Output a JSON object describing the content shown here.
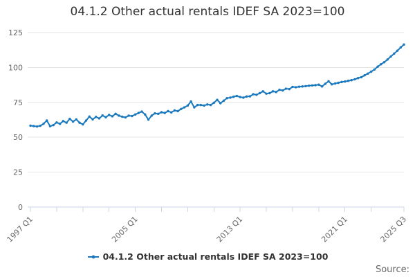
{
  "title": "04.1.2 Other actual rentals IDEF SA 2023=100",
  "legend": {
    "label": "04.1.2 Other actual rentals IDEF SA 2023=100"
  },
  "source_label": "Source:",
  "colors": {
    "line": "#1978be",
    "grid": "#e6e6e6",
    "axis": "#ccd6eb",
    "tick_label": "#666666",
    "title_text": "#333333",
    "legend_text": "#333333",
    "source_text": "#666666"
  },
  "chart_data": {
    "type": "line",
    "title": "04.1.2 Other actual rentals IDEF SA 2023=100",
    "xlabel": "",
    "ylabel": "",
    "ylim": [
      0,
      125
    ],
    "y_ticks": [
      0,
      25,
      50,
      75,
      100,
      125
    ],
    "grid": "horizontal",
    "legend_position": "bottom-center",
    "x_frequency": "quarterly",
    "x_start": "1997 Q1",
    "x_end": "2025 Q3",
    "x_tick_interval_quarters": 8,
    "x_labeled_ticks": [
      {
        "index": 0,
        "label": "1997 Q1"
      },
      {
        "index": 32,
        "label": "2005 Q1"
      },
      {
        "index": 64,
        "label": "2013 Q1"
      },
      {
        "index": 96,
        "label": "2021 Q1"
      },
      {
        "index": 114,
        "label": "2025 Q3"
      }
    ],
    "series": [
      {
        "name": "04.1.2 Other actual rentals IDEF SA 2023=100",
        "color": "#1978be",
        "marker": "circle",
        "periods": [
          "1997 Q1",
          "1997 Q2",
          "1997 Q3",
          "1997 Q4",
          "1998 Q1",
          "1998 Q2",
          "1998 Q3",
          "1998 Q4",
          "1999 Q1",
          "1999 Q2",
          "1999 Q3",
          "1999 Q4",
          "2000 Q1",
          "2000 Q2",
          "2000 Q3",
          "2000 Q4",
          "2001 Q1",
          "2001 Q2",
          "2001 Q3",
          "2001 Q4",
          "2002 Q1",
          "2002 Q2",
          "2002 Q3",
          "2002 Q4",
          "2003 Q1",
          "2003 Q2",
          "2003 Q3",
          "2003 Q4",
          "2004 Q1",
          "2004 Q2",
          "2004 Q3",
          "2004 Q4",
          "2005 Q1",
          "2005 Q2",
          "2005 Q3",
          "2005 Q4",
          "2006 Q1",
          "2006 Q2",
          "2006 Q3",
          "2006 Q4",
          "2007 Q1",
          "2007 Q2",
          "2007 Q3",
          "2007 Q4",
          "2008 Q1",
          "2008 Q2",
          "2008 Q3",
          "2008 Q4",
          "2009 Q1",
          "2009 Q2",
          "2009 Q3",
          "2009 Q4",
          "2010 Q1",
          "2010 Q2",
          "2010 Q3",
          "2010 Q4",
          "2011 Q1",
          "2011 Q2",
          "2011 Q3",
          "2011 Q4",
          "2012 Q1",
          "2012 Q2",
          "2012 Q3",
          "2012 Q4",
          "2013 Q1",
          "2013 Q2",
          "2013 Q3",
          "2013 Q4",
          "2014 Q1",
          "2014 Q2",
          "2014 Q3",
          "2014 Q4",
          "2015 Q1",
          "2015 Q2",
          "2015 Q3",
          "2015 Q4",
          "2016 Q1",
          "2016 Q2",
          "2016 Q3",
          "2016 Q4",
          "2017 Q1",
          "2017 Q2",
          "2017 Q3",
          "2017 Q4",
          "2018 Q1",
          "2018 Q2",
          "2018 Q3",
          "2018 Q4",
          "2019 Q1",
          "2019 Q2",
          "2019 Q3",
          "2019 Q4",
          "2020 Q1",
          "2020 Q2",
          "2020 Q3",
          "2020 Q4",
          "2021 Q1",
          "2021 Q2",
          "2021 Q3",
          "2021 Q4",
          "2022 Q1",
          "2022 Q2",
          "2022 Q3",
          "2022 Q4",
          "2023 Q1",
          "2023 Q2",
          "2023 Q3",
          "2023 Q4",
          "2024 Q1",
          "2024 Q2",
          "2024 Q3",
          "2024 Q4",
          "2025 Q1",
          "2025 Q2",
          "2025 Q3"
        ],
        "values": [
          58.3,
          58.0,
          57.7,
          58.2,
          59.6,
          62.0,
          57.9,
          58.7,
          60.6,
          59.6,
          61.6,
          60.4,
          63.2,
          61.2,
          62.8,
          60.4,
          59.2,
          62.0,
          64.8,
          62.8,
          64.6,
          63.5,
          65.6,
          64.3,
          66.0,
          65.0,
          66.8,
          65.5,
          64.7,
          64.2,
          65.5,
          65.2,
          66.3,
          67.4,
          68.4,
          66.3,
          62.6,
          65.5,
          67.1,
          66.8,
          67.9,
          67.4,
          68.7,
          67.8,
          69.2,
          68.7,
          70.3,
          71.4,
          72.7,
          75.6,
          71.4,
          73.1,
          73.1,
          72.7,
          73.5,
          73.1,
          74.7,
          76.8,
          74.4,
          76.2,
          78.0,
          78.4,
          79.0,
          79.6,
          78.8,
          78.4,
          79.2,
          79.3,
          80.8,
          80.4,
          81.6,
          82.9,
          81.2,
          81.6,
          82.9,
          82.4,
          84.0,
          83.5,
          84.8,
          84.5,
          86.1,
          85.8,
          86.2,
          86.4,
          86.6,
          86.9,
          87.1,
          87.3,
          87.7,
          86.4,
          88.3,
          90.1,
          87.9,
          88.5,
          89.0,
          89.6,
          89.9,
          90.4,
          90.9,
          91.5,
          92.4,
          93.0,
          94.4,
          95.6,
          97.0,
          98.5,
          100.6,
          102.3,
          103.8,
          105.7,
          107.8,
          109.9,
          112.0,
          114.3,
          116.4
        ]
      }
    ]
  }
}
